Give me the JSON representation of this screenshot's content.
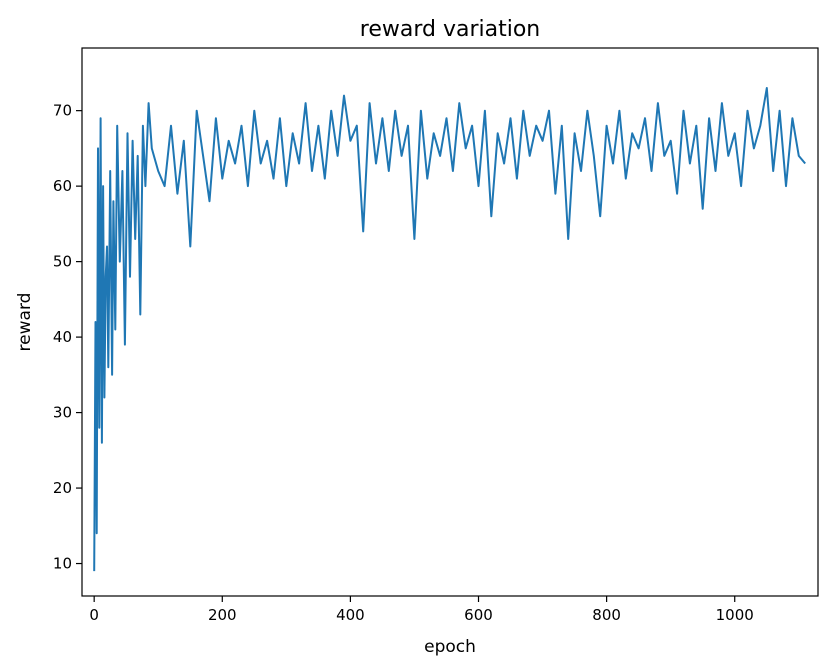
{
  "chart_data": {
    "type": "line",
    "title": "reward variation",
    "xlabel": "epoch",
    "ylabel": "reward",
    "xlim": [
      -19,
      1130
    ],
    "ylim": [
      5.7,
      78.3
    ],
    "xticks": [
      0,
      200,
      400,
      600,
      800,
      1000
    ],
    "yticks": [
      10,
      20,
      30,
      40,
      50,
      60,
      70
    ],
    "grid": false,
    "series": [
      {
        "color": "#1f77b4",
        "x": [
          0,
          2,
          4,
          6,
          8,
          10,
          12,
          14,
          16,
          18,
          20,
          22,
          25,
          28,
          30,
          33,
          36,
          40,
          44,
          48,
          52,
          56,
          60,
          64,
          68,
          72,
          76,
          80,
          85,
          90,
          100,
          110,
          120,
          130,
          140,
          150,
          160,
          170,
          180,
          190,
          200,
          210,
          220,
          230,
          240,
          250,
          260,
          270,
          280,
          290,
          300,
          310,
          320,
          330,
          340,
          350,
          360,
          370,
          380,
          390,
          400,
          410,
          420,
          430,
          440,
          450,
          460,
          470,
          480,
          490,
          500,
          510,
          520,
          530,
          540,
          550,
          560,
          570,
          580,
          590,
          600,
          610,
          620,
          630,
          640,
          650,
          660,
          670,
          680,
          690,
          700,
          710,
          720,
          730,
          740,
          750,
          760,
          770,
          780,
          790,
          800,
          810,
          820,
          830,
          840,
          850,
          860,
          870,
          880,
          890,
          900,
          910,
          920,
          930,
          940,
          950,
          960,
          970,
          980,
          990,
          1000,
          1010,
          1020,
          1030,
          1040,
          1050,
          1060,
          1070,
          1080,
          1090,
          1100,
          1110
        ],
        "y": [
          9,
          42,
          14,
          65,
          28,
          69,
          26,
          60,
          32,
          48,
          52,
          36,
          62,
          35,
          58,
          41,
          68,
          50,
          62,
          39,
          67,
          48,
          66,
          53,
          64,
          43,
          68,
          60,
          71,
          65,
          62,
          60,
          68,
          59,
          66,
          52,
          70,
          64,
          58,
          69,
          61,
          66,
          63,
          68,
          60,
          70,
          63,
          66,
          61,
          69,
          60,
          67,
          63,
          71,
          62,
          68,
          61,
          70,
          64,
          72,
          66,
          68,
          54,
          71,
          63,
          69,
          62,
          70,
          64,
          68,
          53,
          70,
          61,
          67,
          64,
          69,
          62,
          71,
          65,
          68,
          60,
          70,
          56,
          67,
          63,
          69,
          61,
          70,
          64,
          68,
          66,
          70,
          59,
          68,
          53,
          67,
          62,
          70,
          64,
          56,
          68,
          63,
          70,
          61,
          67,
          65,
          69,
          62,
          71,
          64,
          66,
          59,
          70,
          63,
          68,
          57,
          69,
          62,
          71,
          64,
          67,
          60,
          70,
          65,
          68,
          73,
          62,
          70,
          60,
          69,
          64,
          63
        ]
      }
    ]
  }
}
